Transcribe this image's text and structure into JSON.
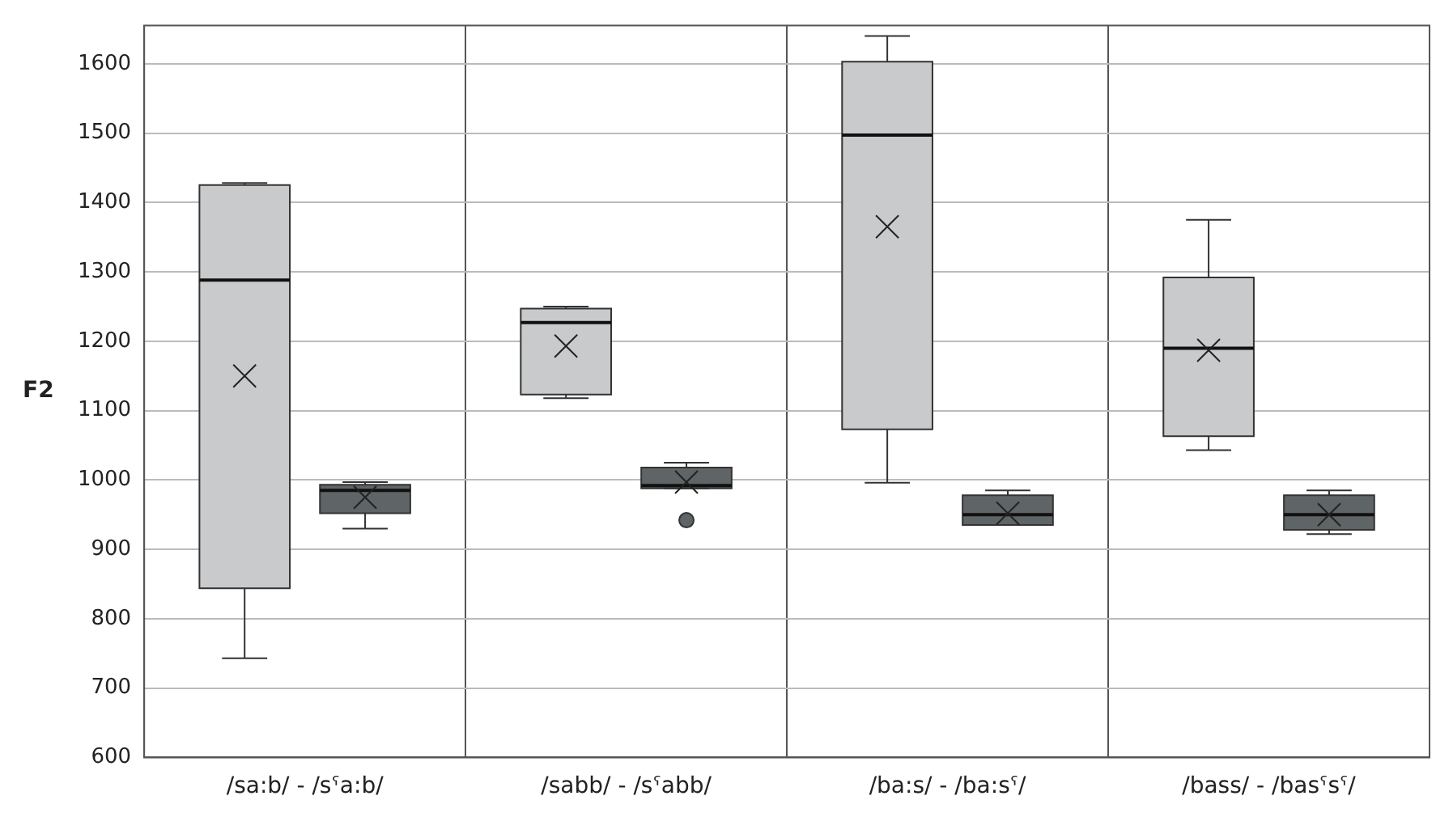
{
  "chart_data": {
    "type": "box",
    "ylabel": "F2",
    "categories": [
      "/sa:b/ - /sˤa:b/",
      "/sabb/ - /sˤabb/",
      "/ba:s/ - /ba:sˤ/",
      "/bass/ - /basˤsˤ/"
    ],
    "series": [
      {
        "color": "#c8cacc",
        "boxes": [
          {
            "low": 743,
            "q1": 844,
            "median": 1288,
            "q3": 1425,
            "high": 1428,
            "mean": 1150
          },
          {
            "low": 1118,
            "q1": 1123,
            "median": 1227,
            "q3": 1247,
            "high": 1250,
            "mean": 1193
          },
          {
            "low": 996,
            "q1": 1073,
            "median": 1497,
            "q3": 1603,
            "high": 1640,
            "mean": 1365
          },
          {
            "low": 1043,
            "q1": 1063,
            "median": 1190,
            "q3": 1292,
            "high": 1375,
            "mean": 1187
          }
        ]
      },
      {
        "color": "#5f6466",
        "boxes": [
          {
            "low": 930,
            "q1": 952,
            "median": 985,
            "q3": 993,
            "high": 997,
            "mean": 975
          },
          {
            "low": 988,
            "q1": 988,
            "median": 992,
            "q3": 1018,
            "high": 1025,
            "mean": 997,
            "outliers": [
              942
            ]
          },
          {
            "low": 935,
            "q1": 935,
            "median": 950,
            "q3": 978,
            "high": 985,
            "mean": 952
          },
          {
            "low": 922,
            "q1": 928,
            "median": 950,
            "q3": 978,
            "high": 985,
            "mean": 950
          }
        ]
      }
    ],
    "ylim": [
      600,
      1655
    ],
    "yticks": [
      600,
      700,
      800,
      900,
      1000,
      1100,
      1200,
      1300,
      1400,
      1500,
      1600
    ],
    "grid": true,
    "legend": false
  }
}
